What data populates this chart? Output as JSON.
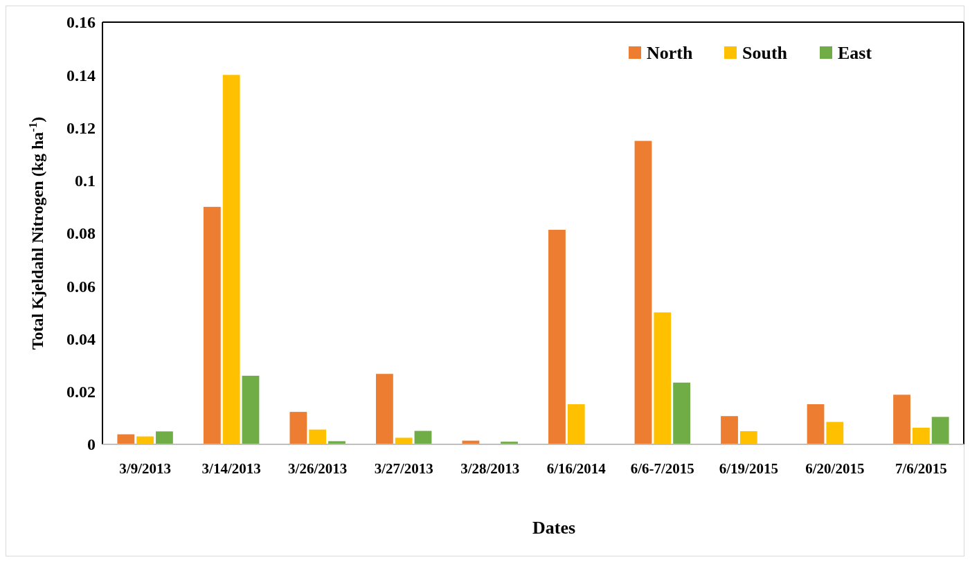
{
  "chart_data": {
    "type": "bar",
    "xlabel": "Dates",
    "ylabel": "Total Kjeldahl Nitrogen (kg ha$^{-1}$)",
    "categories": [
      "3/9/2013",
      "3/14/2013",
      "3/26/2013",
      "3/27/2013",
      "3/28/2013",
      "6/16/2014",
      "6/6-7/2015",
      "6/19/2015",
      "6/20/2015",
      "7/6/2015"
    ],
    "series": [
      {
        "name": "North",
        "color": "#ed7d31",
        "values": [
          0.0038,
          0.09,
          0.0123,
          0.0267,
          0.0014,
          0.0813,
          0.115,
          0.0107,
          0.0152,
          0.0188
        ]
      },
      {
        "name": "South",
        "color": "#ffc000",
        "values": [
          0.003,
          0.14,
          0.0056,
          0.0025,
          null,
          0.0152,
          0.05,
          0.005,
          0.0085,
          0.0063
        ]
      },
      {
        "name": "East",
        "color": "#70ad47",
        "values": [
          0.0049,
          0.026,
          0.0012,
          0.0051,
          0.001,
          null,
          0.0234,
          null,
          null,
          0.0104
        ]
      }
    ],
    "ylim": [
      0,
      0.16
    ],
    "yticks": [
      0,
      0.02,
      0.04,
      0.06,
      0.08,
      {
        "value": 0.1,
        "label": "0.1"
      },
      0.12,
      0.14,
      0.16
    ],
    "grid": false,
    "legend": "top right"
  }
}
